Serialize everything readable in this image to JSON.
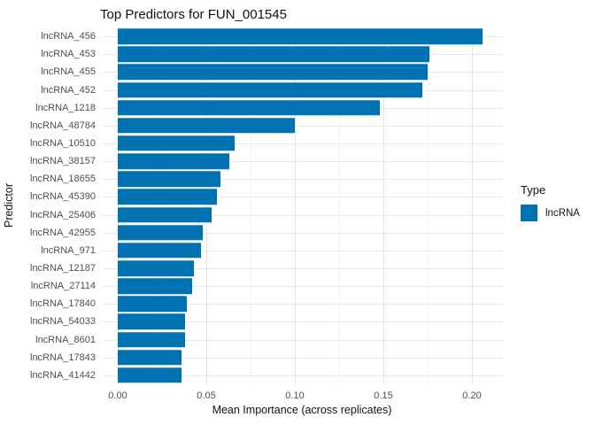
{
  "title": "Top Predictors for FUN_001545",
  "legend": {
    "title": "Type",
    "items": [
      {
        "label": "lncRNA",
        "color": "#0072B2"
      }
    ]
  },
  "chart_data": {
    "type": "bar",
    "orientation": "horizontal",
    "title": "Top Predictors for FUN_001545",
    "xlabel": "Mean Importance (across replicates)",
    "ylabel": "Predictor",
    "categories": [
      "lncRNA_456",
      "lncRNA_453",
      "lncRNA_455",
      "lncRNA_452",
      "lncRNA_1218",
      "lncRNA_48784",
      "lncRNA_10510",
      "lncRNA_38157",
      "lncRNA_18655",
      "lncRNA_45390",
      "lncRNA_25406",
      "lncRNA_42955",
      "lncRNA_971",
      "lncRNA_12187",
      "lncRNA_27114",
      "lncRNA_17840",
      "lncRNA_54033",
      "lncRNA_8601",
      "lncRNA_17843",
      "lncRNA_41442"
    ],
    "values": [
      0.206,
      0.176,
      0.175,
      0.172,
      0.148,
      0.1,
      0.066,
      0.063,
      0.058,
      0.056,
      0.053,
      0.048,
      0.047,
      0.043,
      0.042,
      0.039,
      0.038,
      0.038,
      0.036,
      0.036
    ],
    "series_name": "lncRNA",
    "bar_color": "#0072B2",
    "xlim": [
      0,
      0.217
    ],
    "xticks": [
      0,
      0.05,
      0.1,
      0.15,
      0.2
    ],
    "xtick_labels": [
      "0.00",
      "0.05",
      "0.10",
      "0.15",
      "0.20"
    ],
    "xtick_minor": [
      0.025,
      0.075,
      0.125,
      0.175
    ],
    "grid": true,
    "legend_position": "right",
    "panel_background": "#ffffff"
  }
}
